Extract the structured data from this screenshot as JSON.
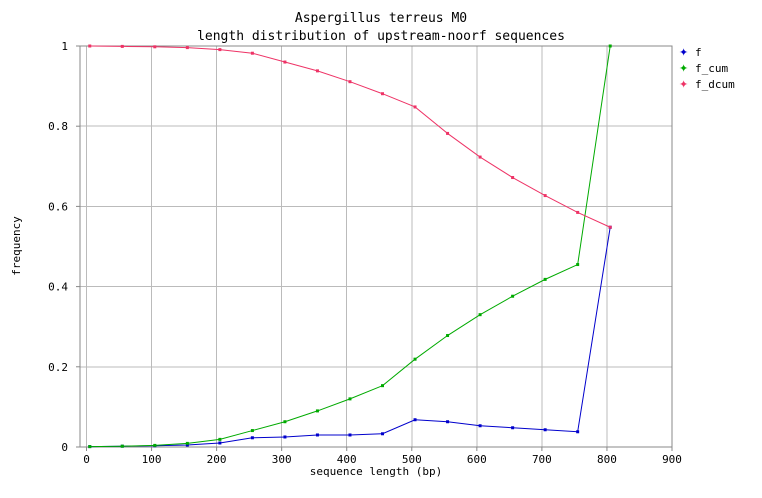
{
  "chart_data": {
    "type": "line",
    "title": "Aspergillus terreus M0",
    "subtitle": "length distribution of upstream-noorf sequences",
    "xlabel": "sequence length (bp)",
    "ylabel": "frequency",
    "xlim": [
      -10,
      900
    ],
    "ylim": [
      0,
      1
    ],
    "xticks": [
      "0",
      "100",
      "200",
      "300",
      "400",
      "500",
      "600",
      "700",
      "800",
      "900"
    ],
    "yticks": [
      "0",
      "0.2",
      "0.4",
      "0.6",
      "0.8",
      "1"
    ],
    "grid": true,
    "legend_position": "top-right",
    "x": [
      5,
      55,
      105,
      155,
      205,
      255,
      305,
      355,
      405,
      455,
      505,
      555,
      605,
      655,
      705,
      755,
      805
    ],
    "series": [
      {
        "name": "f",
        "color": "#0000cc",
        "values": [
          0.001,
          0.002,
          0.003,
          0.005,
          0.01,
          0.023,
          0.025,
          0.03,
          0.03,
          0.033,
          0.068,
          0.063,
          0.053,
          0.048,
          0.043,
          0.038,
          0.548
        ]
      },
      {
        "name": "f_cum",
        "color": "#00aa00",
        "values": [
          0.001,
          0.002,
          0.004,
          0.009,
          0.019,
          0.041,
          0.063,
          0.09,
          0.12,
          0.153,
          0.219,
          0.278,
          0.33,
          0.376,
          0.418,
          0.455,
          1.0
        ]
      },
      {
        "name": "f_dcum",
        "color": "#ee3366",
        "values": [
          1.0,
          0.999,
          0.998,
          0.996,
          0.991,
          0.982,
          0.96,
          0.938,
          0.911,
          0.881,
          0.848,
          0.782,
          0.723,
          0.672,
          0.627,
          0.585,
          0.548
        ]
      }
    ]
  }
}
